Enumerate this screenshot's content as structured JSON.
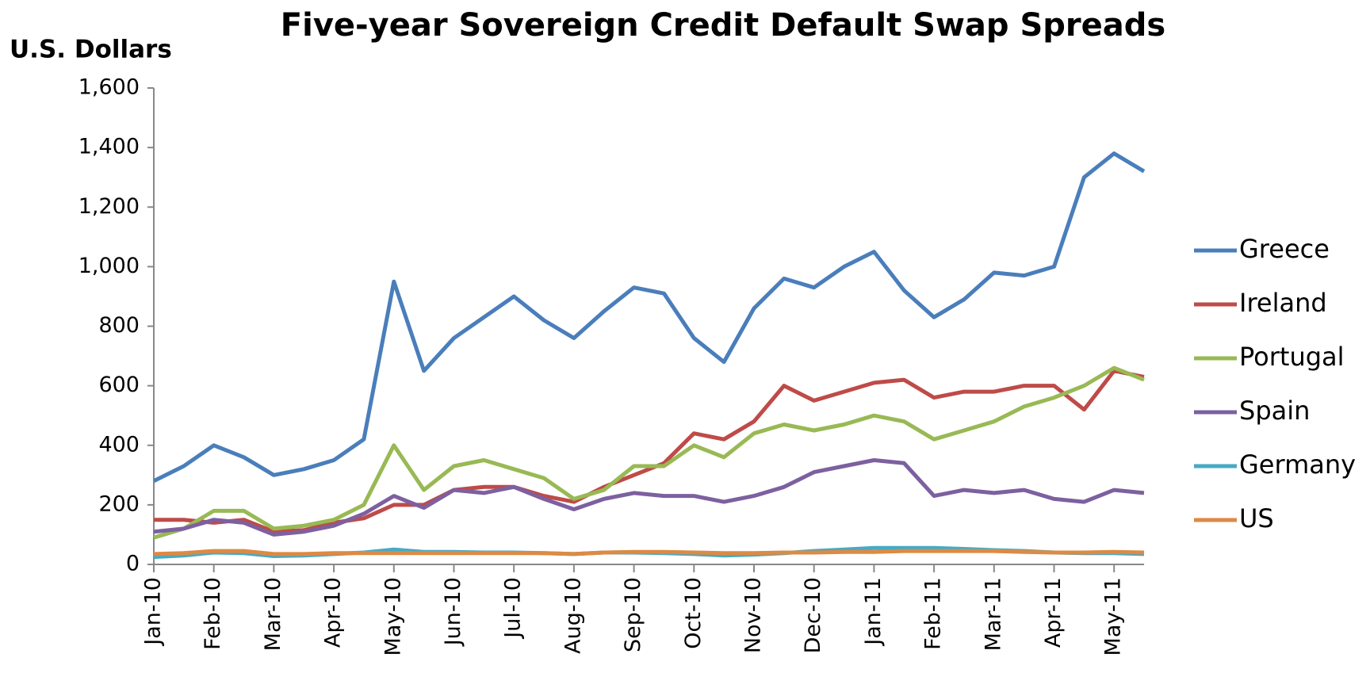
{
  "chart_data": {
    "type": "line",
    "title": "Five-year Sovereign Credit Default Swap Spreads",
    "y_label": "U.S. Dollars",
    "categories": [
      "Jan-10",
      null,
      "Feb-10",
      null,
      "Mar-10",
      null,
      "Apr-10",
      null,
      "May-10",
      null,
      "Jun-10",
      null,
      "Jul-10",
      null,
      "Aug-10",
      null,
      "Sep-10",
      null,
      "Oct-10",
      null,
      "Nov-10",
      null,
      "Dec-10",
      null,
      "Jan-11",
      null,
      "Feb-11",
      null,
      "Mar-11",
      null,
      "Apr-11",
      null,
      "May-11",
      null
    ],
    "series": [
      {
        "name": "Greece",
        "color": "#4a7ebb",
        "values": [
          280,
          330,
          400,
          360,
          300,
          320,
          350,
          420,
          950,
          650,
          760,
          830,
          900,
          820,
          760,
          850,
          930,
          910,
          760,
          680,
          860,
          960,
          930,
          1000,
          1050,
          920,
          830,
          890,
          980,
          970,
          1000,
          1300,
          1380,
          1320
        ]
      },
      {
        "name": "Ireland",
        "color": "#be4b48",
        "values": [
          150,
          150,
          140,
          150,
          110,
          115,
          140,
          155,
          200,
          200,
          250,
          260,
          260,
          230,
          210,
          260,
          300,
          340,
          440,
          420,
          480,
          600,
          550,
          580,
          610,
          620,
          560,
          580,
          580,
          600,
          600,
          520,
          650,
          630
        ]
      },
      {
        "name": "Portugal",
        "color": "#98b954",
        "values": [
          90,
          120,
          180,
          180,
          120,
          130,
          150,
          200,
          400,
          250,
          330,
          350,
          320,
          290,
          220,
          250,
          330,
          330,
          400,
          360,
          440,
          470,
          450,
          470,
          500,
          480,
          420,
          450,
          480,
          530,
          560,
          600,
          660,
          620
        ]
      },
      {
        "name": "Spain",
        "color": "#7d60a0",
        "values": [
          110,
          120,
          150,
          140,
          100,
          110,
          130,
          170,
          230,
          190,
          250,
          240,
          260,
          220,
          185,
          220,
          240,
          230,
          230,
          210,
          230,
          260,
          310,
          330,
          350,
          340,
          230,
          250,
          240,
          250,
          220,
          210,
          250,
          240
        ]
      },
      {
        "name": "Germany",
        "color": "#46aac5",
        "values": [
          25,
          30,
          40,
          38,
          28,
          30,
          35,
          40,
          50,
          42,
          42,
          40,
          40,
          38,
          35,
          40,
          40,
          38,
          35,
          30,
          33,
          38,
          45,
          50,
          55,
          55,
          55,
          52,
          48,
          45,
          40,
          38,
          38,
          35
        ]
      },
      {
        "name": "US",
        "color": "#dd8a44",
        "values": [
          35,
          38,
          45,
          45,
          35,
          35,
          38,
          38,
          38,
          38,
          38,
          38,
          38,
          38,
          35,
          40,
          42,
          42,
          40,
          38,
          38,
          40,
          40,
          42,
          42,
          45,
          45,
          45,
          45,
          42,
          40,
          40,
          42,
          40
        ]
      }
    ],
    "ylim": [
      0,
      1600
    ],
    "yticks": [
      0,
      200,
      400,
      600,
      800,
      {
        "value": 1000,
        "label": "1,000"
      },
      {
        "value": 1200,
        "label": "1,200"
      },
      {
        "value": 1400,
        "label": "1,400"
      },
      {
        "value": 1600,
        "label": "1,600"
      }
    ],
    "legend": "right",
    "grid": false
  }
}
